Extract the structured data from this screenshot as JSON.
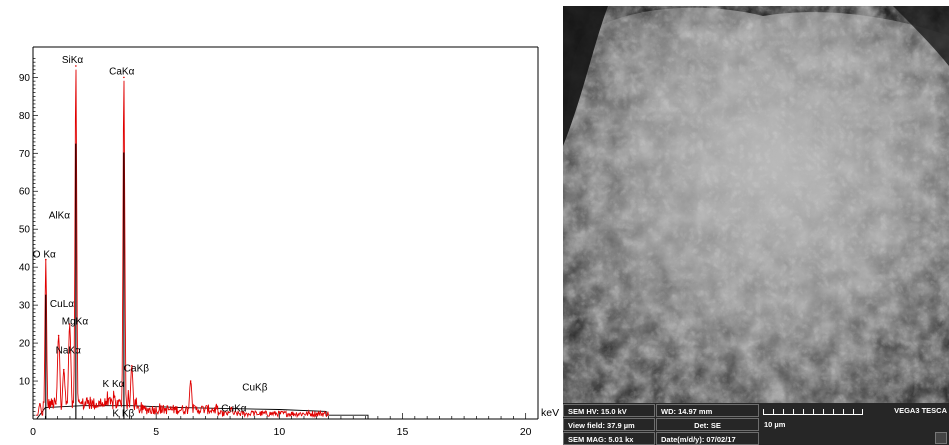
{
  "chart_data": {
    "type": "line",
    "title": "",
    "xlabel": "keV",
    "ylabel": "",
    "xlim": [
      0,
      20.5
    ],
    "ylim": [
      0,
      98
    ],
    "x_ticks": [
      0,
      5,
      10,
      15,
      20
    ],
    "y_ticks": [
      10,
      20,
      30,
      40,
      50,
      60,
      70,
      80,
      90
    ],
    "grid": false,
    "series": [
      {
        "color": "#e00000",
        "peaks": [
          {
            "x": 0.28,
            "y": 4
          },
          {
            "x": 0.52,
            "y": 42
          },
          {
            "x": 0.93,
            "y": 4
          },
          {
            "x": 1.04,
            "y": 22
          },
          {
            "x": 1.25,
            "y": 13
          },
          {
            "x": 1.49,
            "y": 25
          },
          {
            "x": 1.74,
            "y": 93
          },
          {
            "x": 3.31,
            "y": 6
          },
          {
            "x": 3.69,
            "y": 90
          },
          {
            "x": 4.01,
            "y": 14
          },
          {
            "x": 6.4,
            "y": 10
          },
          {
            "x": 8.05,
            "y": 3
          },
          {
            "x": 8.9,
            "y": 2
          }
        ]
      }
    ],
    "background_envelope": [
      [
        0.15,
        0
      ],
      [
        0.5,
        3
      ],
      [
        2,
        3.5
      ],
      [
        4,
        3.5
      ],
      [
        6,
        3
      ],
      [
        10,
        2.5
      ],
      [
        11.9,
        2
      ],
      [
        11.9,
        1
      ],
      [
        13.6,
        1
      ],
      [
        13.6,
        0
      ]
    ],
    "annotations": [
      {
        "text": "SiKα",
        "x": 1.74,
        "y": 93
      },
      {
        "text": "CaKα",
        "x": 3.7,
        "y": 90
      },
      {
        "text": "AlKα",
        "x": 1.49,
        "y": 52
      },
      {
        "text": "O Kα",
        "x": 0.52,
        "y": 42
      },
      {
        "text": "CuLα",
        "x": 0.93,
        "y": 30
      },
      {
        "text": "MgKα",
        "x": 1.25,
        "y": 26
      },
      {
        "text": "NaKα",
        "x": 1.04,
        "y": 18
      },
      {
        "text": "CaKβ",
        "x": 4.01,
        "y": 13
      },
      {
        "text": "K Kα",
        "x": 3.31,
        "y": 9
      },
      {
        "text": "K Kβ",
        "x": 3.59,
        "y": 2
      },
      {
        "text": "CuKβ",
        "x": 8.9,
        "y": 8
      },
      {
        "text": "CuKα",
        "x": 8.05,
        "y": 3
      }
    ]
  },
  "sem_info": {
    "hv": "SEM HV: 15.0 kV",
    "wd": "WD: 14.97 mm",
    "brand": "VEGA3 TESCA",
    "view_field": "View field: 37.9 µm",
    "det": "Det: SE",
    "scale": "10 µm",
    "mag": "SEM MAG: 5.01 kx",
    "date": "Date(m/d/y): 07/02/17"
  }
}
